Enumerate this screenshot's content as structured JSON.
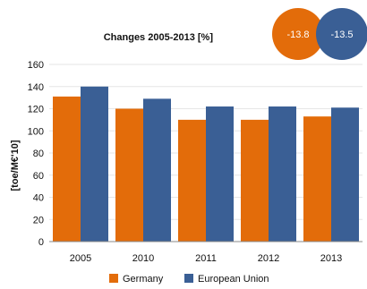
{
  "chart_data": {
    "type": "bar",
    "title": "Changes  2005-2013 [%]",
    "ylabel": "[toe/M€'10]",
    "xlabel": "",
    "categories": [
      "2005",
      "2010",
      "2011",
      "2012",
      "2013"
    ],
    "ylim": [
      0,
      160
    ],
    "yticks": [
      0,
      20,
      40,
      60,
      80,
      100,
      120,
      140,
      160
    ],
    "grid": true,
    "legend_position": "bottom",
    "series": [
      {
        "name": "Germany",
        "color": "#E36C0A",
        "values": [
          131,
          120,
          110,
          110,
          113
        ]
      },
      {
        "name": "European Union",
        "color": "#3A5F95",
        "values": [
          140,
          129,
          122,
          122,
          121
        ]
      }
    ],
    "changes": [
      {
        "series": "Germany",
        "value": "-13.8",
        "color": "#E36C0A"
      },
      {
        "series": "European Union",
        "value": "-13.5",
        "color": "#3A5F95"
      }
    ]
  }
}
